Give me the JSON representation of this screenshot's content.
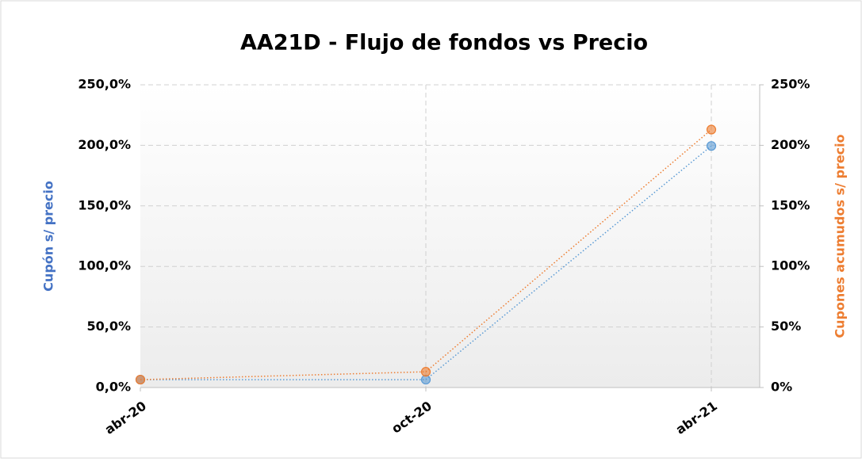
{
  "chart_data": {
    "type": "line",
    "title": "AA21D - Flujo de fondos vs Precio",
    "y_label": "Cupón s/ precio",
    "y2_label": "Cupones acumudos s/ precio",
    "categories": [
      "abr-20",
      "oct-20",
      "abr-21"
    ],
    "series": [
      {
        "color": "#5b9bd5",
        "values": [
          6.5,
          6.5,
          199.5
        ]
      },
      {
        "color": "#ed7d31",
        "axis": "y2",
        "values": [
          6.5,
          13,
          213
        ]
      }
    ],
    "ylim": [
      0,
      250
    ],
    "yticks": [
      {
        "value": 0,
        "label": "0,0%"
      },
      {
        "value": 50,
        "label": "50,0%"
      },
      {
        "value": 100,
        "label": "100,0%"
      },
      {
        "value": 150,
        "label": "150,0%"
      },
      {
        "value": 200,
        "label": "200,0%"
      },
      {
        "value": 250,
        "label": "250,0%"
      }
    ],
    "y2lim": [
      0,
      250
    ],
    "y2ticks": [
      {
        "value": 0,
        "label": "0%"
      },
      {
        "value": 50,
        "label": "50%"
      },
      {
        "value": 100,
        "label": "100%"
      },
      {
        "value": 150,
        "label": "150%"
      },
      {
        "value": 200,
        "label": "200%"
      },
      {
        "value": 250,
        "label": "250%"
      }
    ],
    "grid": true
  }
}
